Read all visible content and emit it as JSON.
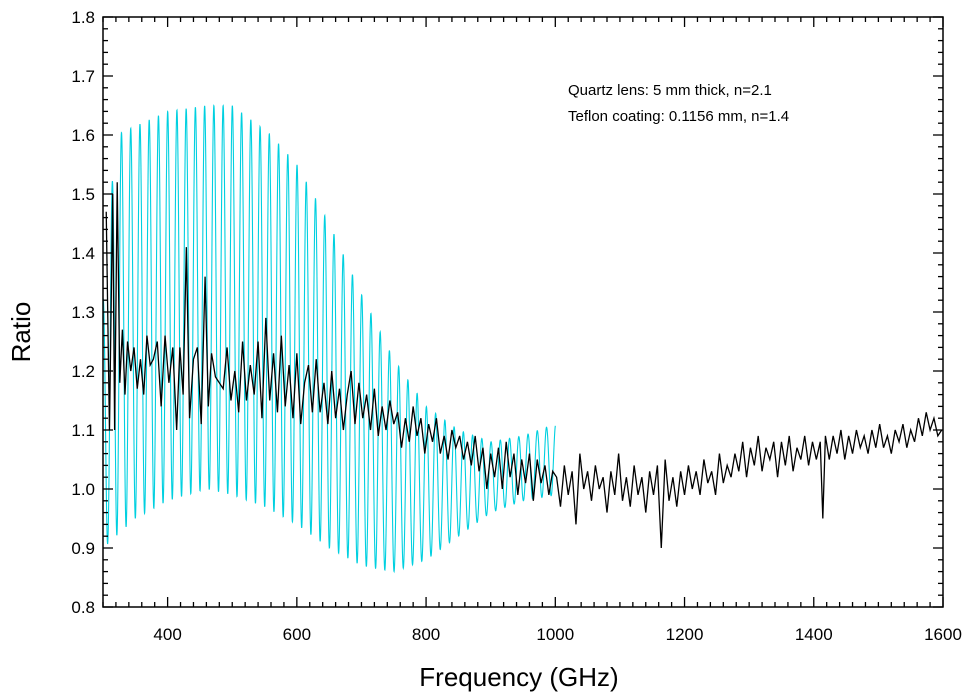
{
  "chart_data": {
    "type": "line",
    "title": "",
    "xlabel": "Frequency (GHz)",
    "ylabel": "Ratio",
    "xlim": [
      300,
      1600
    ],
    "ylim": [
      0.8,
      1.8
    ],
    "x_ticks": [
      400,
      600,
      800,
      1000,
      1200,
      1400,
      1600
    ],
    "x_tick_labels": [
      "400",
      "600",
      "800",
      "1000",
      "1200",
      "1400",
      "1600"
    ],
    "y_ticks": [
      0.8,
      0.9,
      1.0,
      1.1,
      1.2,
      1.3,
      1.4,
      1.5,
      1.6,
      1.7,
      1.8
    ],
    "y_tick_labels": [
      "0.8",
      "0.9",
      "1.0",
      "1.1",
      "1.2",
      "1.3",
      "1.4",
      "1.5",
      "1.6",
      "1.7",
      "1.8"
    ],
    "annotations": [
      "Quartz lens: 5 mm thick, n=2.1",
      "Teflon coating: 0.1156 mm, n=1.4"
    ],
    "grid": false,
    "series": [
      {
        "color": "#00d0e0",
        "style": "oscillating model curve",
        "x_range": [
          300,
          1000
        ],
        "period_ghz": 14.3,
        "upper_envelope": [
          [
            300,
            1.32
          ],
          [
            320,
            1.6
          ],
          [
            400,
            1.64
          ],
          [
            460,
            1.65
          ],
          [
            500,
            1.65
          ],
          [
            560,
            1.6
          ],
          [
            600,
            1.55
          ],
          [
            650,
            1.45
          ],
          [
            700,
            1.33
          ],
          [
            750,
            1.22
          ],
          [
            800,
            1.14
          ],
          [
            850,
            1.1
          ],
          [
            900,
            1.08
          ],
          [
            950,
            1.09
          ],
          [
            1000,
            1.11
          ]
        ],
        "lower_envelope": [
          [
            300,
            0.9
          ],
          [
            350,
            0.95
          ],
          [
            400,
            0.98
          ],
          [
            460,
            1.0
          ],
          [
            500,
            0.99
          ],
          [
            550,
            0.97
          ],
          [
            600,
            0.94
          ],
          [
            650,
            0.9
          ],
          [
            700,
            0.87
          ],
          [
            750,
            0.86
          ],
          [
            800,
            0.88
          ],
          [
            850,
            0.92
          ],
          [
            900,
            0.96
          ],
          [
            950,
            0.98
          ],
          [
            1000,
            0.99
          ]
        ]
      },
      {
        "color": "#000000",
        "style": "measured data",
        "points": [
          [
            305,
            1.47
          ],
          [
            310,
            1.1
          ],
          [
            315,
            1.5
          ],
          [
            318,
            1.1
          ],
          [
            322,
            1.52
          ],
          [
            326,
            1.18
          ],
          [
            330,
            1.27
          ],
          [
            334,
            1.16
          ],
          [
            338,
            1.25
          ],
          [
            343,
            1.2
          ],
          [
            348,
            1.24
          ],
          [
            353,
            1.17
          ],
          [
            358,
            1.22
          ],
          [
            363,
            1.16
          ],
          [
            368,
            1.26
          ],
          [
            373,
            1.21
          ],
          [
            378,
            1.22
          ],
          [
            384,
            1.25
          ],
          [
            390,
            1.14
          ],
          [
            396,
            1.26
          ],
          [
            402,
            1.18
          ],
          [
            408,
            1.24
          ],
          [
            414,
            1.1
          ],
          [
            419,
            1.24
          ],
          [
            424,
            1.16
          ],
          [
            429,
            1.41
          ],
          [
            434,
            1.12
          ],
          [
            440,
            1.22
          ],
          [
            446,
            1.24
          ],
          [
            452,
            1.11
          ],
          [
            458,
            1.36
          ],
          [
            463,
            1.14
          ],
          [
            468,
            1.23
          ],
          [
            474,
            1.19
          ],
          [
            480,
            1.18
          ],
          [
            486,
            1.17
          ],
          [
            492,
            1.24
          ],
          [
            498,
            1.15
          ],
          [
            504,
            1.2
          ],
          [
            510,
            1.13
          ],
          [
            516,
            1.25
          ],
          [
            522,
            1.15
          ],
          [
            528,
            1.21
          ],
          [
            534,
            1.16
          ],
          [
            540,
            1.25
          ],
          [
            546,
            1.12
          ],
          [
            552,
            1.29
          ],
          [
            558,
            1.15
          ],
          [
            564,
            1.23
          ],
          [
            570,
            1.13
          ],
          [
            576,
            1.26
          ],
          [
            582,
            1.14
          ],
          [
            588,
            1.21
          ],
          [
            594,
            1.12
          ],
          [
            600,
            1.23
          ],
          [
            606,
            1.11
          ],
          [
            612,
            1.18
          ],
          [
            618,
            1.21
          ],
          [
            624,
            1.13
          ],
          [
            630,
            1.22
          ],
          [
            636,
            1.13
          ],
          [
            642,
            1.18
          ],
          [
            648,
            1.11
          ],
          [
            654,
            1.2
          ],
          [
            660,
            1.12
          ],
          [
            666,
            1.17
          ],
          [
            672,
            1.1
          ],
          [
            678,
            1.16
          ],
          [
            684,
            1.2
          ],
          [
            690,
            1.11
          ],
          [
            696,
            1.18
          ],
          [
            702,
            1.12
          ],
          [
            708,
            1.16
          ],
          [
            714,
            1.1
          ],
          [
            720,
            1.17
          ],
          [
            726,
            1.09
          ],
          [
            732,
            1.14
          ],
          [
            738,
            1.1
          ],
          [
            744,
            1.15
          ],
          [
            750,
            1.11
          ],
          [
            756,
            1.13
          ],
          [
            762,
            1.07
          ],
          [
            768,
            1.12
          ],
          [
            774,
            1.08
          ],
          [
            780,
            1.14
          ],
          [
            786,
            1.09
          ],
          [
            792,
            1.12
          ],
          [
            798,
            1.06
          ],
          [
            804,
            1.11
          ],
          [
            810,
            1.08
          ],
          [
            816,
            1.12
          ],
          [
            822,
            1.06
          ],
          [
            828,
            1.09
          ],
          [
            834,
            1.05
          ],
          [
            840,
            1.1
          ],
          [
            846,
            1.07
          ],
          [
            852,
            1.09
          ],
          [
            858,
            1.05
          ],
          [
            864,
            1.08
          ],
          [
            870,
            1.04
          ],
          [
            876,
            1.09
          ],
          [
            882,
            1.03
          ],
          [
            888,
            1.07
          ],
          [
            894,
            1.0
          ],
          [
            900,
            1.06
          ],
          [
            906,
            1.02
          ],
          [
            912,
            1.07
          ],
          [
            918,
            1.0
          ],
          [
            924,
            1.08
          ],
          [
            930,
            1.02
          ],
          [
            936,
            1.06
          ],
          [
            942,
            0.99
          ],
          [
            948,
            1.05
          ],
          [
            954,
            1.01
          ],
          [
            960,
            1.06
          ],
          [
            966,
            0.98
          ],
          [
            972,
            1.05
          ],
          [
            978,
            1.01
          ],
          [
            984,
            1.04
          ],
          [
            990,
            0.99
          ],
          [
            996,
            1.03
          ],
          [
            1002,
            1.02
          ],
          [
            1008,
            0.97
          ],
          [
            1014,
            1.04
          ],
          [
            1020,
            0.99
          ],
          [
            1026,
            1.03
          ],
          [
            1032,
            0.94
          ],
          [
            1038,
            1.06
          ],
          [
            1044,
            1.0
          ],
          [
            1050,
            1.03
          ],
          [
            1056,
            0.98
          ],
          [
            1062,
            1.04
          ],
          [
            1068,
            1.0
          ],
          [
            1074,
            1.02
          ],
          [
            1080,
            0.96
          ],
          [
            1086,
            1.03
          ],
          [
            1092,
            0.99
          ],
          [
            1098,
            1.06
          ],
          [
            1104,
            0.98
          ],
          [
            1110,
            1.02
          ],
          [
            1116,
            0.97
          ],
          [
            1122,
            1.04
          ],
          [
            1128,
            0.99
          ],
          [
            1134,
            1.02
          ],
          [
            1140,
            0.96
          ],
          [
            1146,
            1.03
          ],
          [
            1152,
            0.99
          ],
          [
            1158,
            1.04
          ],
          [
            1164,
            0.9
          ],
          [
            1170,
            1.05
          ],
          [
            1176,
            0.98
          ],
          [
            1182,
            1.02
          ],
          [
            1188,
            0.97
          ],
          [
            1194,
            1.03
          ],
          [
            1200,
            0.99
          ],
          [
            1206,
            1.04
          ],
          [
            1212,
            1.0
          ],
          [
            1218,
            1.03
          ],
          [
            1224,
            0.99
          ],
          [
            1230,
            1.05
          ],
          [
            1236,
            1.01
          ],
          [
            1242,
            1.03
          ],
          [
            1248,
            0.99
          ],
          [
            1254,
            1.06
          ],
          [
            1260,
            1.01
          ],
          [
            1266,
            1.04
          ],
          [
            1272,
            1.02
          ],
          [
            1278,
            1.06
          ],
          [
            1284,
            1.03
          ],
          [
            1290,
            1.08
          ],
          [
            1296,
            1.02
          ],
          [
            1302,
            1.07
          ],
          [
            1308,
            1.04
          ],
          [
            1314,
            1.09
          ],
          [
            1320,
            1.03
          ],
          [
            1326,
            1.07
          ],
          [
            1332,
            1.05
          ],
          [
            1338,
            1.08
          ],
          [
            1344,
            1.02
          ],
          [
            1350,
            1.08
          ],
          [
            1356,
            1.04
          ],
          [
            1362,
            1.09
          ],
          [
            1368,
            1.03
          ],
          [
            1374,
            1.07
          ],
          [
            1380,
            1.05
          ],
          [
            1386,
            1.09
          ],
          [
            1392,
            1.04
          ],
          [
            1398,
            1.08
          ],
          [
            1404,
            1.05
          ],
          [
            1410,
            1.08
          ],
          [
            1414,
            0.95
          ],
          [
            1418,
            1.09
          ],
          [
            1424,
            1.05
          ],
          [
            1430,
            1.09
          ],
          [
            1436,
            1.06
          ],
          [
            1442,
            1.1
          ],
          [
            1448,
            1.05
          ],
          [
            1454,
            1.09
          ],
          [
            1460,
            1.06
          ],
          [
            1466,
            1.1
          ],
          [
            1472,
            1.07
          ],
          [
            1478,
            1.09
          ],
          [
            1484,
            1.06
          ],
          [
            1490,
            1.1
          ],
          [
            1496,
            1.07
          ],
          [
            1502,
            1.11
          ],
          [
            1508,
            1.07
          ],
          [
            1514,
            1.09
          ],
          [
            1520,
            1.06
          ],
          [
            1526,
            1.1
          ],
          [
            1532,
            1.08
          ],
          [
            1538,
            1.11
          ],
          [
            1544,
            1.07
          ],
          [
            1550,
            1.1
          ],
          [
            1556,
            1.08
          ],
          [
            1562,
            1.12
          ],
          [
            1568,
            1.09
          ],
          [
            1574,
            1.13
          ],
          [
            1580,
            1.1
          ],
          [
            1586,
            1.12
          ],
          [
            1592,
            1.09
          ],
          [
            1598,
            1.1
          ]
        ]
      }
    ]
  }
}
